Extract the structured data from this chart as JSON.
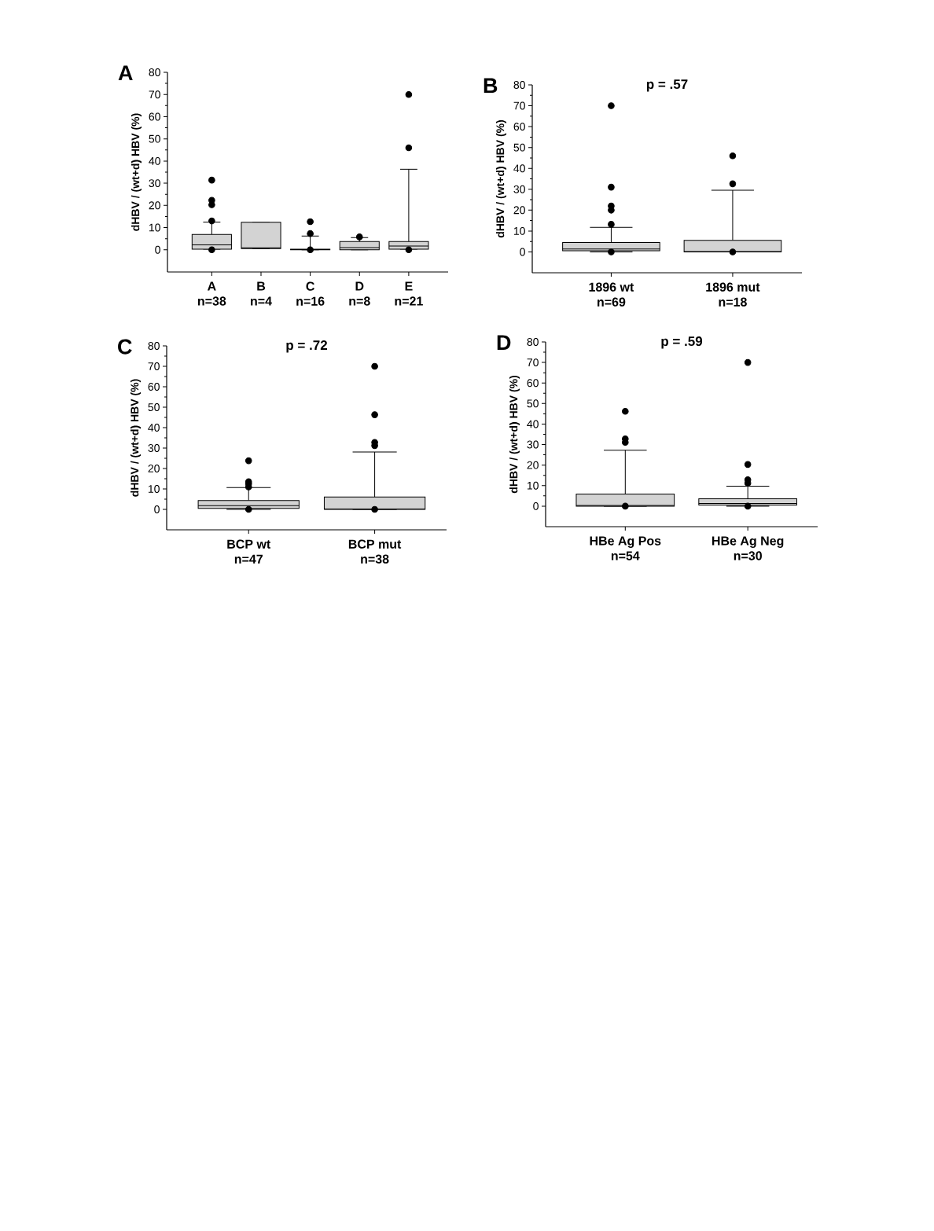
{
  "chart_data": [
    {
      "type": "box",
      "title": "A",
      "ylabel": "dHBV / (wt+d) HBV (%)",
      "categories": [
        "A n=38",
        "B n=4",
        "C n=16",
        "D n=8",
        "E n=21"
      ],
      "color": "#d3d3d3",
      "marker": "circle",
      "ylim": [
        -10,
        80
      ],
      "yticks": [
        0,
        10,
        20,
        30,
        40,
        50,
        60,
        70,
        80
      ],
      "boxes": [
        {
          "low": 0.3,
          "q1": 0.3,
          "median": 2.2,
          "q3": 6.9,
          "high": 12.5,
          "outliers": [
            31.4,
            22.3,
            20.3,
            13,
            0
          ]
        },
        {
          "low": 0.5,
          "q1": 0.5,
          "median": 0.9,
          "q3": 12.4,
          "high": 12.4
        },
        {
          "low": 0,
          "q1": 0,
          "median": 0.1,
          "q3": 0.3,
          "high": 6.2,
          "outliers": [
            12.7,
            7.3,
            0
          ]
        },
        {
          "low": 0,
          "q1": 0,
          "median": 1,
          "q3": 3.7,
          "high": 5.5,
          "outliers": [
            5.8
          ]
        },
        {
          "low": 0.3,
          "q1": 0.3,
          "median": 1.7,
          "q3": 3.7,
          "high": 36.3,
          "outliers": [
            70,
            46,
            0
          ]
        }
      ]
    },
    {
      "type": "box",
      "title": "B",
      "ylabel": "dHBV / (wt+d) HBV (%)",
      "annotations": [
        "p = .57"
      ],
      "categories": [
        "1896 wt n=69",
        "1896 mut n=18"
      ],
      "color": "#d3d3d3",
      "marker": "circle",
      "ylim": [
        -10,
        80
      ],
      "yticks": [
        0,
        10,
        20,
        30,
        40,
        50,
        60,
        70,
        80
      ],
      "boxes": [
        {
          "low": 0,
          "q1": 0.5,
          "median": 1.4,
          "q3": 4.5,
          "high": 11.7,
          "outliers": [
            70,
            31,
            22,
            20,
            13.2,
            0
          ]
        },
        {
          "low": 0,
          "q1": 0,
          "median": 0.2,
          "q3": 5.5,
          "high": 29.5,
          "outliers": [
            46,
            32.6,
            0
          ]
        }
      ]
    },
    {
      "type": "box",
      "title": "C",
      "ylabel": "dHBV / (wt+d) HBV (%)",
      "annotations": [
        "p = .72"
      ],
      "categories": [
        "BCP wt n=47",
        "BCP mut n=38"
      ],
      "color": "#d3d3d3",
      "marker": "circle",
      "ylim": [
        -10,
        80
      ],
      "yticks": [
        0,
        10,
        20,
        30,
        40,
        50,
        60,
        70,
        80
      ],
      "boxes": [
        {
          "low": 0,
          "q1": 0.5,
          "median": 1.8,
          "q3": 4.3,
          "high": 10.7,
          "outliers": [
            23.8,
            13.5,
            12.5,
            11,
            0
          ]
        },
        {
          "low": 0,
          "q1": 0,
          "median": 0.2,
          "q3": 6.1,
          "high": 28.1,
          "outliers": [
            70,
            46.3,
            32.8,
            31.2,
            0
          ]
        }
      ]
    },
    {
      "type": "box",
      "title": "D",
      "ylabel": "dHBV / (wt+d) HBV (%)",
      "annotations": [
        "p = .59"
      ],
      "categories": [
        "HBe Ag Pos n=54",
        "HBe Ag Neg n=30"
      ],
      "color": "#d3d3d3",
      "marker": "circle",
      "ylim": [
        -10,
        80
      ],
      "yticks": [
        0,
        10,
        20,
        30,
        40,
        50,
        60,
        70,
        80
      ],
      "boxes": [
        {
          "low": 0,
          "q1": 0,
          "median": 0.3,
          "q3": 5.9,
          "high": 27.2,
          "outliers": [
            46.2,
            32.8,
            31.1,
            0
          ]
        },
        {
          "low": 0,
          "q1": 0.5,
          "median": 1.3,
          "q3": 3.6,
          "high": 9.7,
          "outliers": [
            70,
            20.3,
            12.9,
            11.2,
            0
          ]
        }
      ]
    }
  ]
}
